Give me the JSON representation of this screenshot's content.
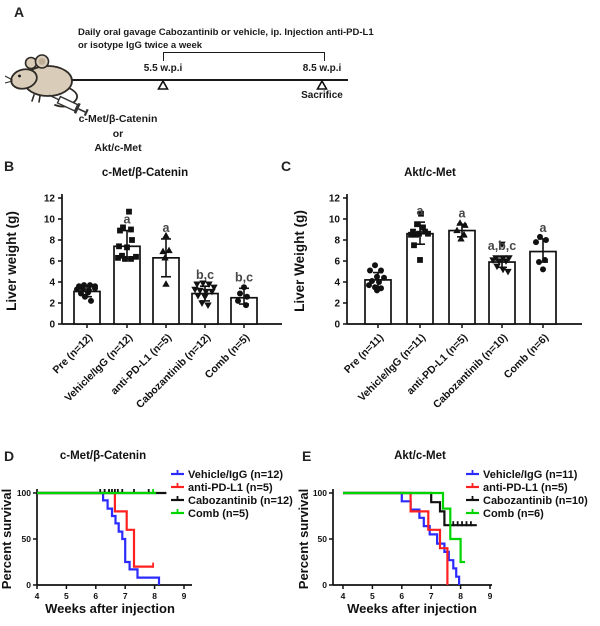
{
  "panels": {
    "a": {
      "label": "A",
      "protocol_line1": "Daily oral gavage Cabozantinib or vehicle, ip. Injection anti-PD-L1",
      "protocol_line2": "or isotype IgG twice a week",
      "timepoint_start": "5.5 w.p.i",
      "timepoint_end": "8.5 w.p.i",
      "sacrifice": "Sacrifice",
      "model_option1": "c-Met/β-Catenin",
      "model_or": "or",
      "model_option2": "Akt/c-Met"
    },
    "b": {
      "label": "B"
    },
    "c": {
      "label": "C"
    },
    "d": {
      "label": "D"
    },
    "e": {
      "label": "E"
    }
  },
  "colors": {
    "vehicle": "#2b2bff",
    "anti_pd_l1": "#ff2020",
    "cabozantinib": "#111111",
    "comb": "#00d400",
    "sig_label": "#474747"
  },
  "chart_data": [
    {
      "id": "B",
      "type": "bar",
      "title": "c-Met/β-Catenin",
      "ylabel": "Liver weight (g)",
      "ylim": [
        0,
        12
      ],
      "yticks": [
        0,
        2,
        4,
        6,
        8,
        10,
        12
      ],
      "categories": [
        "Pre (n=12)",
        "Vehicle/IgG (n=12)",
        "anti-PD-L1 (n=5)",
        "Cabozantinib (n=12)",
        "Comb (n=5)"
      ],
      "values": [
        3.1,
        7.4,
        6.3,
        2.9,
        2.5
      ],
      "error_low": [
        2.6,
        6.2,
        4.5,
        2.2,
        1.9
      ],
      "error_high": [
        3.6,
        8.9,
        8.1,
        3.6,
        3.4
      ],
      "sig_labels": [
        "",
        "a",
        "a",
        "b,c",
        "b,c"
      ],
      "markers": [
        "circle",
        "square",
        "triangle-up",
        "triangle-down",
        "circle"
      ],
      "points": [
        [
          [
            -8,
            3.6
          ],
          [
            -3,
            3.7
          ],
          [
            3,
            3.7
          ],
          [
            8,
            3.6
          ],
          [
            -10,
            3.3
          ],
          [
            -4,
            3.3
          ],
          [
            2,
            3.2
          ],
          [
            8,
            3.4
          ],
          [
            -6,
            2.9
          ],
          [
            1,
            3.0
          ],
          [
            -2,
            2.6
          ],
          [
            4,
            2.2
          ]
        ],
        [
          [
            2,
            10.7
          ],
          [
            -4,
            9.2
          ],
          [
            4,
            9.0
          ],
          [
            -7,
            8.9
          ],
          [
            5,
            8.0
          ],
          [
            -8,
            7.4
          ],
          [
            0,
            7.3
          ],
          [
            -5,
            6.5
          ],
          [
            -9,
            6.3
          ],
          [
            -2,
            6.2
          ],
          [
            4,
            6.2
          ],
          [
            9,
            6.4
          ]
        ],
        [
          [
            0,
            8.4
          ],
          [
            3,
            7.0
          ],
          [
            -3,
            6.9
          ],
          [
            -1,
            6.3
          ],
          [
            0,
            3.8
          ]
        ],
        [
          [
            -8,
            3.8
          ],
          [
            -2,
            3.9
          ],
          [
            4,
            3.8
          ],
          [
            9,
            3.5
          ],
          [
            -10,
            3.3
          ],
          [
            -5,
            3.2
          ],
          [
            1,
            3.1
          ],
          [
            7,
            3.1
          ],
          [
            -7,
            2.7
          ],
          [
            0,
            2.6
          ],
          [
            -3,
            2.0
          ],
          [
            3,
            1.8
          ]
        ],
        [
          [
            0,
            3.5
          ],
          [
            -4,
            2.9
          ],
          [
            3,
            2.6
          ],
          [
            -6,
            2.2
          ],
          [
            2,
            1.8
          ]
        ]
      ]
    },
    {
      "id": "C",
      "type": "bar",
      "title": "Akt/c-Met",
      "ylabel": "Liver Weight (g)",
      "ylim": [
        0,
        12
      ],
      "yticks": [
        0,
        2,
        4,
        6,
        8,
        10,
        12
      ],
      "categories": [
        "Pre (n=11)",
        "Vehicle/IgG (n=11)",
        "anti-PD-L1 (n=5)",
        "Cabozantinib (n=10)",
        "Comb (n=6)"
      ],
      "values": [
        4.2,
        8.6,
        8.9,
        5.9,
        6.9
      ],
      "error_low": [
        3.5,
        7.6,
        8.3,
        5.4,
        5.9
      ],
      "error_high": [
        4.9,
        9.7,
        9.5,
        6.4,
        8.1
      ],
      "sig_labels": [
        "",
        "a",
        "a",
        "a,b,c",
        "a"
      ],
      "markers": [
        "circle",
        "square",
        "triangle-up",
        "triangle-down",
        "circle"
      ],
      "points": [
        [
          [
            -3,
            5.6
          ],
          [
            -8,
            5.1
          ],
          [
            3,
            5.1
          ],
          [
            -1,
            4.5
          ],
          [
            6,
            4.4
          ],
          [
            -6,
            4.1
          ],
          [
            1,
            4.0
          ],
          [
            -9,
            3.7
          ],
          [
            -3,
            3.5
          ],
          [
            3,
            3.4
          ],
          [
            -1,
            3.2
          ]
        ],
        [
          [
            1,
            10.5
          ],
          [
            -3,
            9.5
          ],
          [
            3,
            9.2
          ],
          [
            -7,
            8.8
          ],
          [
            5,
            8.8
          ],
          [
            -1,
            8.6
          ],
          [
            -9,
            8.5
          ],
          [
            -4,
            8.5
          ],
          [
            8,
            8.6
          ],
          [
            -6,
            7.5
          ],
          [
            0,
            6.1
          ]
        ],
        [
          [
            -2,
            9.6
          ],
          [
            3,
            9.4
          ],
          [
            -5,
            8.9
          ],
          [
            2,
            8.5
          ],
          [
            -1,
            8.1
          ]
        ],
        [
          [
            0,
            7.6
          ],
          [
            -6,
            6.3
          ],
          [
            1,
            6.3
          ],
          [
            7,
            6.3
          ],
          [
            -9,
            6.1
          ],
          [
            -3,
            6.0
          ],
          [
            4,
            6.0
          ],
          [
            -5,
            5.5
          ],
          [
            1,
            5.2
          ],
          [
            6,
            5.0
          ]
        ],
        [
          [
            -3,
            8.3
          ],
          [
            3,
            8.0
          ],
          [
            -7,
            7.8
          ],
          [
            2,
            6.1
          ],
          [
            -4,
            5.9
          ],
          [
            0,
            5.2
          ]
        ]
      ]
    },
    {
      "id": "D",
      "type": "survival",
      "title": "c-Met/β-Catenin",
      "ylabel": "Percent survival",
      "xlabel": "Weeks after injection",
      "xlim": [
        4,
        9
      ],
      "xticks": [
        4,
        5,
        6,
        7,
        8,
        9
      ],
      "ylim": [
        0,
        100
      ],
      "yticks": [
        0,
        50,
        100
      ],
      "series": [
        {
          "name": "Vehicle/IgG (n=12)",
          "color": "#2b2bff",
          "steps": [
            [
              4,
              100
            ],
            [
              6.25,
              100
            ],
            [
              6.25,
              92
            ],
            [
              6.4,
              92
            ],
            [
              6.4,
              83
            ],
            [
              6.55,
              83
            ],
            [
              6.55,
              75
            ],
            [
              6.67,
              75
            ],
            [
              6.67,
              67
            ],
            [
              6.78,
              67
            ],
            [
              6.78,
              58
            ],
            [
              6.9,
              58
            ],
            [
              6.9,
              50
            ],
            [
              7.0,
              50
            ],
            [
              7.0,
              25
            ],
            [
              7.15,
              25
            ],
            [
              7.15,
              17
            ],
            [
              7.42,
              17
            ],
            [
              7.42,
              8
            ],
            [
              8.15,
              8
            ],
            [
              8.15,
              0
            ]
          ],
          "censor_x": []
        },
        {
          "name": "anti-PD-L1 (n=5)",
          "color": "#ff2020",
          "steps": [
            [
              4,
              100
            ],
            [
              6.65,
              100
            ],
            [
              6.65,
              80
            ],
            [
              7.05,
              80
            ],
            [
              7.05,
              60
            ],
            [
              7.3,
              60
            ],
            [
              7.3,
              20
            ],
            [
              7.98,
              20
            ]
          ],
          "censor_x": [
            7.95
          ]
        },
        {
          "name": "Cabozantinib (n=12)",
          "color": "#111111",
          "steps": [
            [
              4,
              100
            ],
            [
              8.4,
              100
            ]
          ],
          "censor_x": [
            6.15,
            6.3,
            6.45,
            6.55,
            6.65,
            6.75,
            6.9,
            7.3,
            7.8
          ]
        },
        {
          "name": "Comb (n=5)",
          "color": "#00d400",
          "steps": [
            [
              4,
              100
            ],
            [
              8.05,
              100
            ]
          ],
          "censor_x": [
            7.95
          ]
        }
      ]
    },
    {
      "id": "E",
      "type": "survival",
      "title": "Akt/c-Met",
      "ylabel": "Percent survival",
      "xlabel": "Weeks after injection",
      "xlim": [
        4,
        9
      ],
      "xticks": [
        4,
        5,
        6,
        7,
        8,
        9
      ],
      "ylim": [
        0,
        100
      ],
      "yticks": [
        0,
        50,
        100
      ],
      "series": [
        {
          "name": "Vehicle/IgG (n=11)",
          "color": "#2b2bff",
          "steps": [
            [
              4,
              100
            ],
            [
              6.0,
              100
            ],
            [
              6.0,
              91
            ],
            [
              6.3,
              91
            ],
            [
              6.3,
              82
            ],
            [
              6.6,
              82
            ],
            [
              6.6,
              73
            ],
            [
              6.75,
              73
            ],
            [
              6.75,
              64
            ],
            [
              6.95,
              64
            ],
            [
              6.95,
              55
            ],
            [
              7.2,
              55
            ],
            [
              7.2,
              45
            ],
            [
              7.45,
              45
            ],
            [
              7.45,
              36
            ],
            [
              7.6,
              36
            ],
            [
              7.6,
              27
            ],
            [
              7.75,
              27
            ],
            [
              7.75,
              18
            ],
            [
              7.85,
              18
            ],
            [
              7.85,
              9
            ],
            [
              7.95,
              9
            ],
            [
              7.95,
              0
            ]
          ],
          "censor_x": []
        },
        {
          "name": "anti-PD-L1 (n=5)",
          "color": "#ff2020",
          "steps": [
            [
              4,
              100
            ],
            [
              6.3,
              100
            ],
            [
              6.3,
              80
            ],
            [
              6.9,
              80
            ],
            [
              6.9,
              60
            ],
            [
              7.3,
              60
            ],
            [
              7.3,
              40
            ],
            [
              7.55,
              40
            ],
            [
              7.55,
              0
            ]
          ],
          "censor_x": []
        },
        {
          "name": "Cabozantinib (n=10)",
          "color": "#111111",
          "steps": [
            [
              4,
              100
            ],
            [
              7.0,
              100
            ],
            [
              7.0,
              90
            ],
            [
              7.3,
              90
            ],
            [
              7.3,
              80
            ],
            [
              7.45,
              80
            ],
            [
              7.45,
              65
            ],
            [
              8.55,
              65
            ]
          ],
          "censor_x": [
            7.75,
            7.9,
            8.05,
            8.2,
            8.35
          ]
        },
        {
          "name": "Comb (n=6)",
          "color": "#00d400",
          "steps": [
            [
              4,
              100
            ],
            [
              7.4,
              100
            ],
            [
              7.4,
              83
            ],
            [
              7.65,
              83
            ],
            [
              7.65,
              50
            ],
            [
              8.0,
              50
            ],
            [
              8.0,
              25
            ],
            [
              8.15,
              25
            ]
          ],
          "censor_x": []
        }
      ]
    }
  ]
}
